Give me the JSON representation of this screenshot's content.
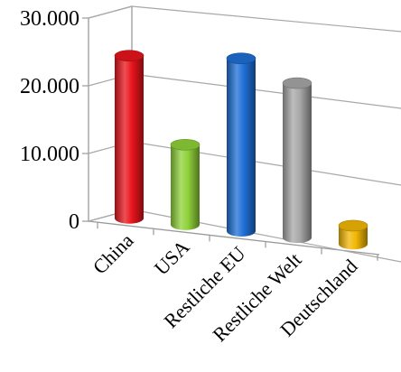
{
  "chart_data": {
    "type": "bar",
    "title": "",
    "xlabel": "",
    "ylabel": "",
    "categories": [
      "China",
      "USA",
      "Restliche EU",
      "Restliche Welt",
      "Deutschland"
    ],
    "values": [
      24000,
      11800,
      25500,
      22800,
      2700
    ],
    "ylim": [
      0,
      30000
    ],
    "yticks": [
      0,
      10000,
      20000,
      30000
    ],
    "ytick_labels": [
      "0",
      "10.000",
      "20.000",
      "30.000"
    ],
    "colors": [
      "#e8141b",
      "#8fd13a",
      "#1e6fd6",
      "#a7a7a7",
      "#f2b705"
    ],
    "grid": true,
    "legend": "none",
    "style": "3d-cylinder"
  }
}
